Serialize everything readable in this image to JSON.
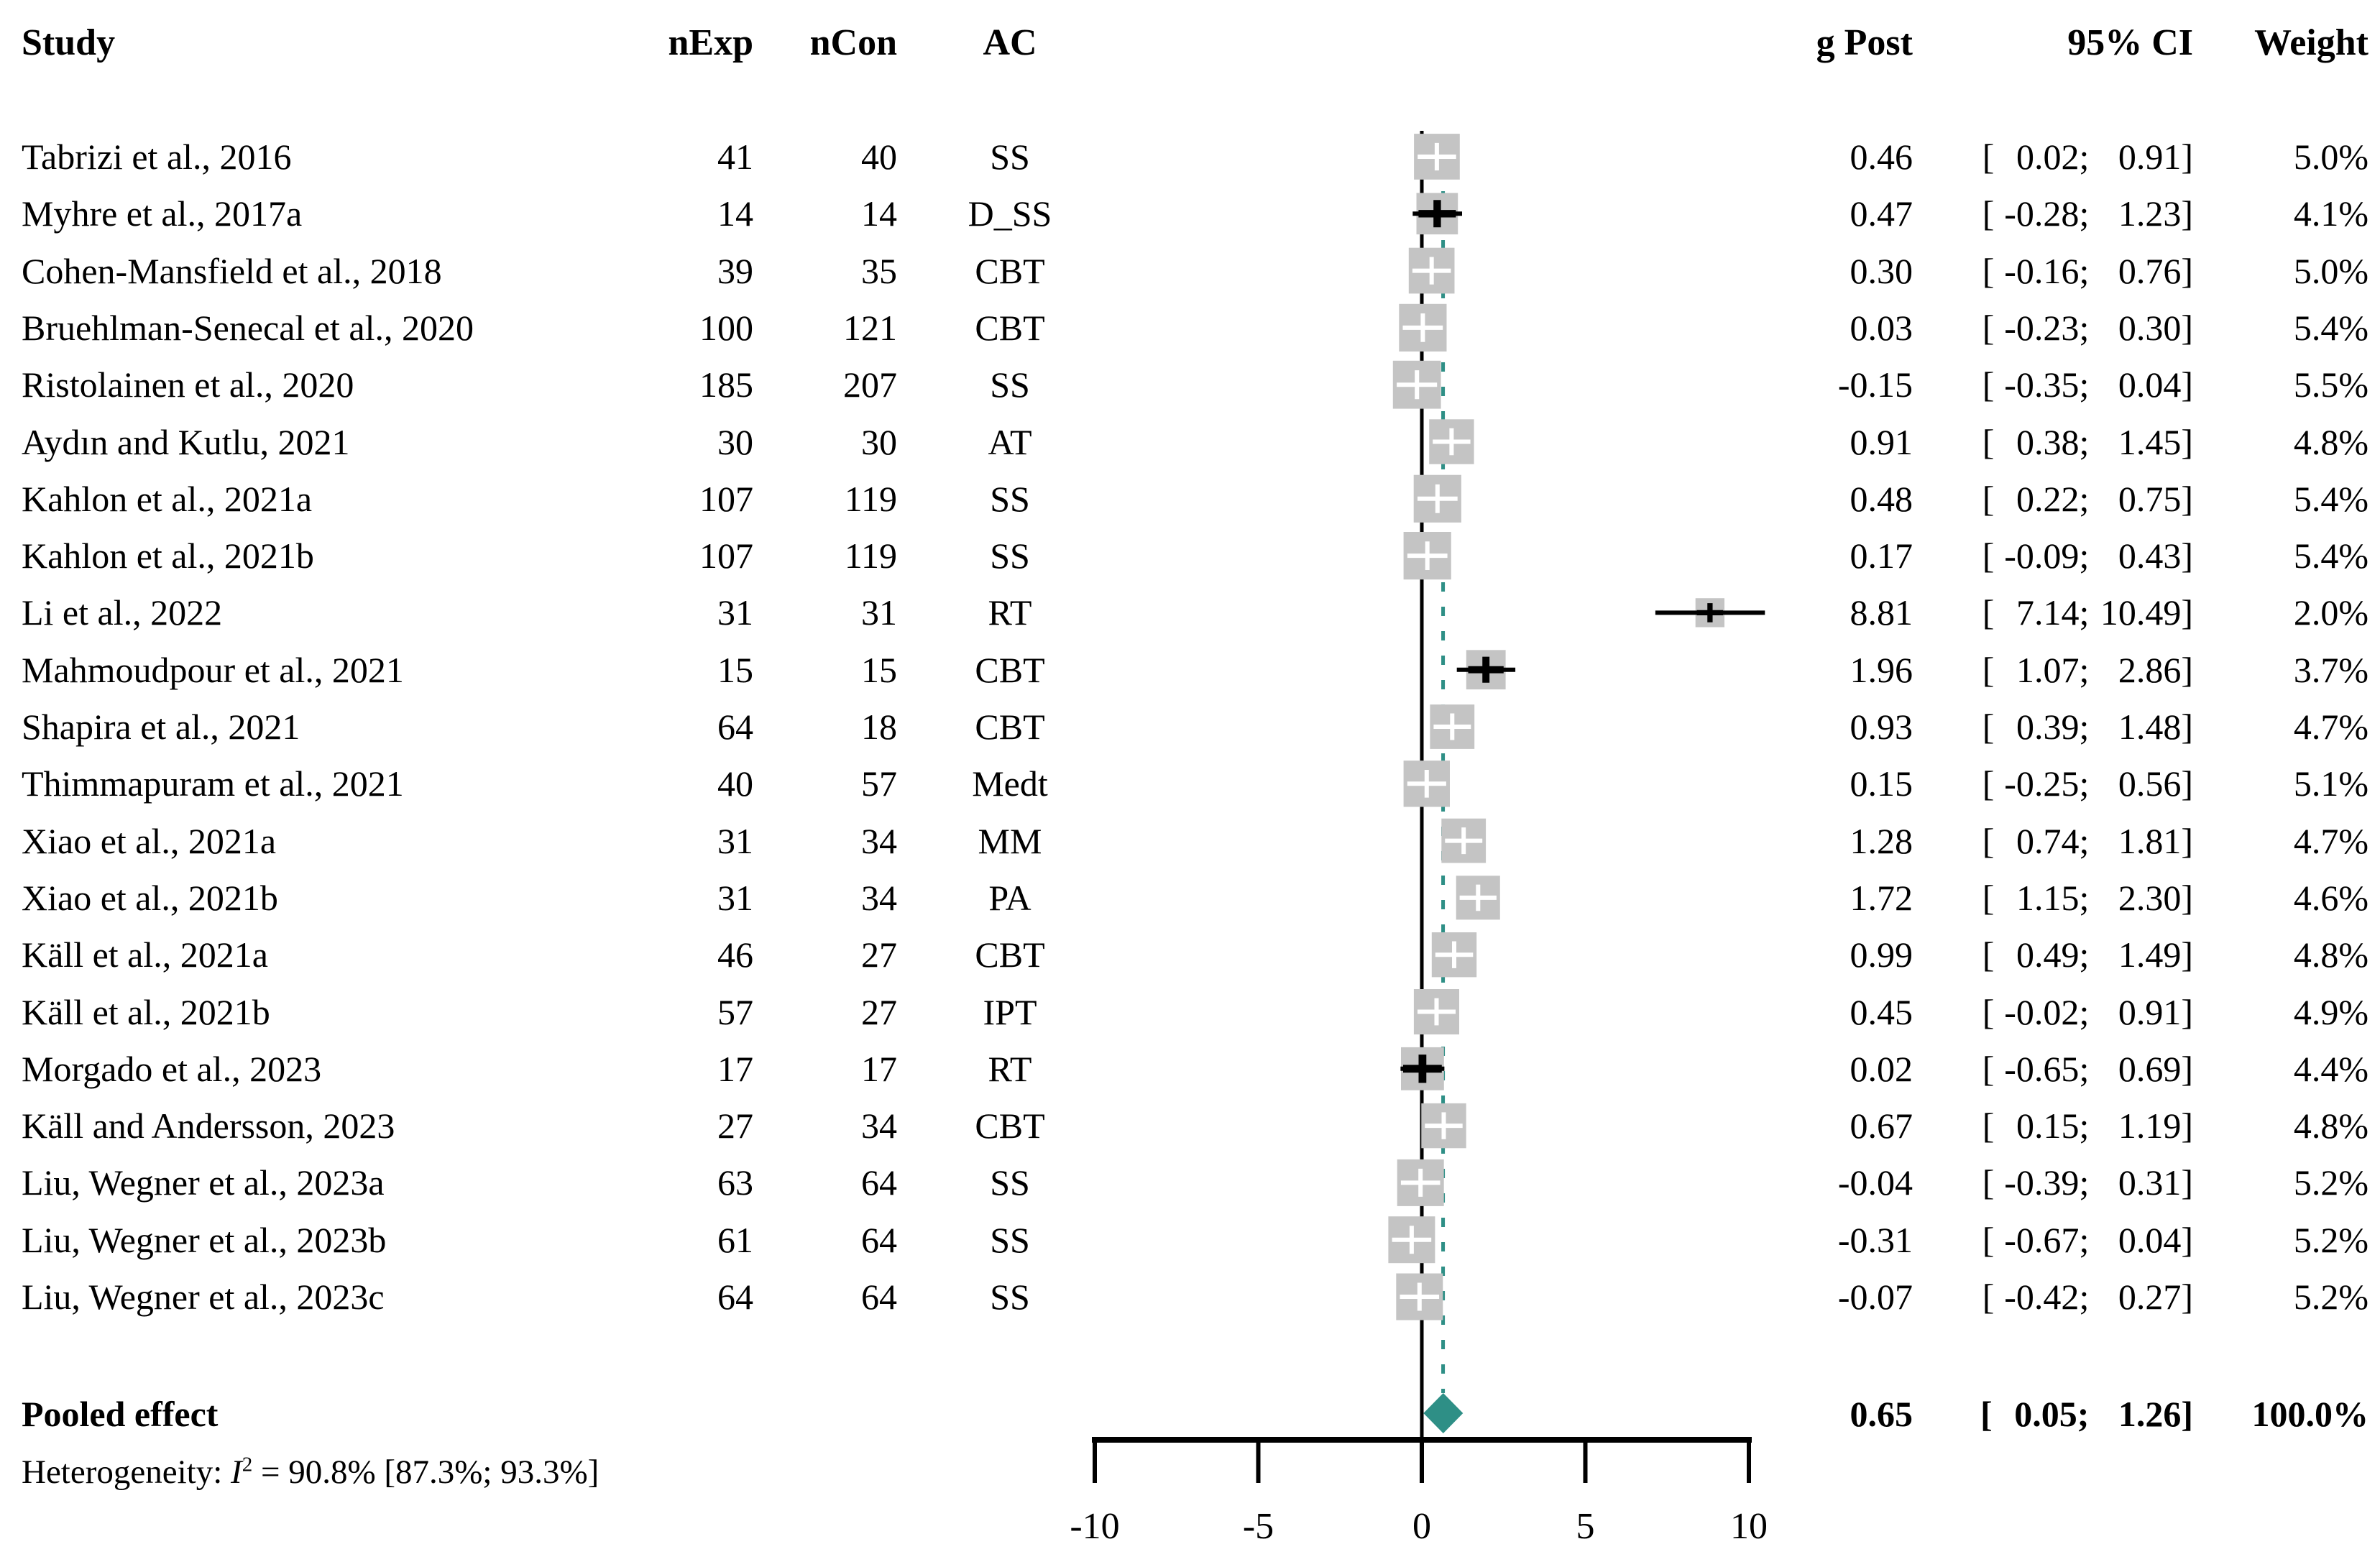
{
  "chart_data": {
    "type": "scatter",
    "subtype": "forest-plot",
    "columns": {
      "study": "Study",
      "n_exp": "nExp",
      "n_con": "nCon",
      "ac": "AC",
      "g_post": "g Post",
      "ci": "95% CI",
      "weight": "Weight"
    },
    "ci_format": {
      "open": "[",
      "sep": ";",
      "close": "]"
    },
    "studies": [
      {
        "name": "Tabrizi et al., 2016",
        "n_exp": "41",
        "n_con": "40",
        "ac": "SS",
        "g": 0.46,
        "lo": 0.02,
        "hi": 0.91,
        "g_label": "0.46",
        "lo_label": "0.02",
        "hi_label": "0.91",
        "weight": 5.0,
        "weight_label": "5.0%"
      },
      {
        "name": "Myhre et al., 2017a",
        "n_exp": "14",
        "n_con": "14",
        "ac": "D_SS",
        "g": 0.47,
        "lo": -0.28,
        "hi": 1.23,
        "g_label": "0.47",
        "lo_label": "-0.28",
        "hi_label": "1.23",
        "weight": 4.1,
        "weight_label": "4.1%"
      },
      {
        "name": "Cohen-Mansfield et al., 2018",
        "n_exp": "39",
        "n_con": "35",
        "ac": "CBT",
        "g": 0.3,
        "lo": -0.16,
        "hi": 0.76,
        "g_label": "0.30",
        "lo_label": "-0.16",
        "hi_label": "0.76",
        "weight": 5.0,
        "weight_label": "5.0%"
      },
      {
        "name": "Bruehlman-Senecal et al., 2020",
        "n_exp": "100",
        "n_con": "121",
        "ac": "CBT",
        "g": 0.03,
        "lo": -0.23,
        "hi": 0.3,
        "g_label": "0.03",
        "lo_label": "-0.23",
        "hi_label": "0.30",
        "weight": 5.4,
        "weight_label": "5.4%"
      },
      {
        "name": "Ristolainen et al., 2020",
        "n_exp": "185",
        "n_con": "207",
        "ac": "SS",
        "g": -0.15,
        "lo": -0.35,
        "hi": 0.04,
        "g_label": "-0.15",
        "lo_label": "-0.35",
        "hi_label": "0.04",
        "weight": 5.5,
        "weight_label": "5.5%"
      },
      {
        "name": "Aydın and Kutlu, 2021",
        "n_exp": "30",
        "n_con": "30",
        "ac": "AT",
        "g": 0.91,
        "lo": 0.38,
        "hi": 1.45,
        "g_label": "0.91",
        "lo_label": "0.38",
        "hi_label": "1.45",
        "weight": 4.8,
        "weight_label": "4.8%"
      },
      {
        "name": "Kahlon et al., 2021a",
        "n_exp": "107",
        "n_con": "119",
        "ac": "SS",
        "g": 0.48,
        "lo": 0.22,
        "hi": 0.75,
        "g_label": "0.48",
        "lo_label": "0.22",
        "hi_label": "0.75",
        "weight": 5.4,
        "weight_label": "5.4%"
      },
      {
        "name": "Kahlon et al., 2021b",
        "n_exp": "107",
        "n_con": "119",
        "ac": "SS",
        "g": 0.17,
        "lo": -0.09,
        "hi": 0.43,
        "g_label": "0.17",
        "lo_label": "-0.09",
        "hi_label": "0.43",
        "weight": 5.4,
        "weight_label": "5.4%"
      },
      {
        "name": "Li et al., 2022",
        "n_exp": "31",
        "n_con": "31",
        "ac": "RT",
        "g": 8.81,
        "lo": 7.14,
        "hi": 10.49,
        "g_label": "8.81",
        "lo_label": "7.14",
        "hi_label": "10.49",
        "weight": 2.0,
        "weight_label": "2.0%"
      },
      {
        "name": "Mahmoudpour et al., 2021",
        "n_exp": "15",
        "n_con": "15",
        "ac": "CBT",
        "g": 1.96,
        "lo": 1.07,
        "hi": 2.86,
        "g_label": "1.96",
        "lo_label": "1.07",
        "hi_label": "2.86",
        "weight": 3.7,
        "weight_label": "3.7%"
      },
      {
        "name": "Shapira et al., 2021",
        "n_exp": "64",
        "n_con": "18",
        "ac": "CBT",
        "g": 0.93,
        "lo": 0.39,
        "hi": 1.48,
        "g_label": "0.93",
        "lo_label": "0.39",
        "hi_label": "1.48",
        "weight": 4.7,
        "weight_label": "4.7%"
      },
      {
        "name": "Thimmapuram et al., 2021",
        "n_exp": "40",
        "n_con": "57",
        "ac": "Medt",
        "g": 0.15,
        "lo": -0.25,
        "hi": 0.56,
        "g_label": "0.15",
        "lo_label": "-0.25",
        "hi_label": "0.56",
        "weight": 5.1,
        "weight_label": "5.1%"
      },
      {
        "name": "Xiao et al., 2021a",
        "n_exp": "31",
        "n_con": "34",
        "ac": "MM",
        "g": 1.28,
        "lo": 0.74,
        "hi": 1.81,
        "g_label": "1.28",
        "lo_label": "0.74",
        "hi_label": "1.81",
        "weight": 4.7,
        "weight_label": "4.7%"
      },
      {
        "name": "Xiao et al., 2021b",
        "n_exp": "31",
        "n_con": "34",
        "ac": "PA",
        "g": 1.72,
        "lo": 1.15,
        "hi": 2.3,
        "g_label": "1.72",
        "lo_label": "1.15",
        "hi_label": "2.30",
        "weight": 4.6,
        "weight_label": "4.6%"
      },
      {
        "name": "Käll et al., 2021a",
        "n_exp": "46",
        "n_con": "27",
        "ac": "CBT",
        "g": 0.99,
        "lo": 0.49,
        "hi": 1.49,
        "g_label": "0.99",
        "lo_label": "0.49",
        "hi_label": "1.49",
        "weight": 4.8,
        "weight_label": "4.8%"
      },
      {
        "name": "Käll et al., 2021b",
        "n_exp": "57",
        "n_con": "27",
        "ac": "IPT",
        "g": 0.45,
        "lo": -0.02,
        "hi": 0.91,
        "g_label": "0.45",
        "lo_label": "-0.02",
        "hi_label": "0.91",
        "weight": 4.9,
        "weight_label": "4.9%"
      },
      {
        "name": "Morgado et al., 2023",
        "n_exp": "17",
        "n_con": "17",
        "ac": "RT",
        "g": 0.02,
        "lo": -0.65,
        "hi": 0.69,
        "g_label": "0.02",
        "lo_label": "-0.65",
        "hi_label": "0.69",
        "weight": 4.4,
        "weight_label": "4.4%"
      },
      {
        "name": "Käll and Andersson, 2023",
        "n_exp": "27",
        "n_con": "34",
        "ac": "CBT",
        "g": 0.67,
        "lo": 0.15,
        "hi": 1.19,
        "g_label": "0.67",
        "lo_label": "0.15",
        "hi_label": "1.19",
        "weight": 4.8,
        "weight_label": "4.8%"
      },
      {
        "name": "Liu, Wegner et al., 2023a",
        "n_exp": "63",
        "n_con": "64",
        "ac": "SS",
        "g": -0.04,
        "lo": -0.39,
        "hi": 0.31,
        "g_label": "-0.04",
        "lo_label": "-0.39",
        "hi_label": "0.31",
        "weight": 5.2,
        "weight_label": "5.2%"
      },
      {
        "name": "Liu, Wegner et al., 2023b",
        "n_exp": "61",
        "n_con": "64",
        "ac": "SS",
        "g": -0.31,
        "lo": -0.67,
        "hi": 0.04,
        "g_label": "-0.31",
        "lo_label": "-0.67",
        "hi_label": "0.04",
        "weight": 5.2,
        "weight_label": "5.2%"
      },
      {
        "name": "Liu, Wegner et al., 2023c",
        "n_exp": "64",
        "n_con": "64",
        "ac": "SS",
        "g": -0.07,
        "lo": -0.42,
        "hi": 0.27,
        "g_label": "-0.07",
        "lo_label": "-0.42",
        "hi_label": "0.27",
        "weight": 5.2,
        "weight_label": "5.2%"
      }
    ],
    "pooled": {
      "name": "Pooled effect",
      "g": 0.65,
      "lo": 0.05,
      "hi": 1.26,
      "g_label": "0.65",
      "lo_label": "0.05",
      "hi_label": "1.26",
      "weight_label": "100.0%"
    },
    "heterogeneity": {
      "prefix": "Heterogeneity: ",
      "stat": "I",
      "sup": "2",
      "rest": " = 90.8% [87.3%; 93.3%]"
    },
    "axis": {
      "ticks": [
        -10,
        -5,
        0,
        5,
        10
      ],
      "tick_labels": [
        "-10",
        "-5",
        "0",
        "5",
        "10"
      ],
      "xlim": [
        -10,
        10
      ],
      "reference_line": 0,
      "pooled_line": 0.65
    },
    "colors": {
      "square": "#C4C4C4",
      "teal": "#2E8F86",
      "black": "#000000",
      "white_plus": "#FFFFFF"
    }
  }
}
